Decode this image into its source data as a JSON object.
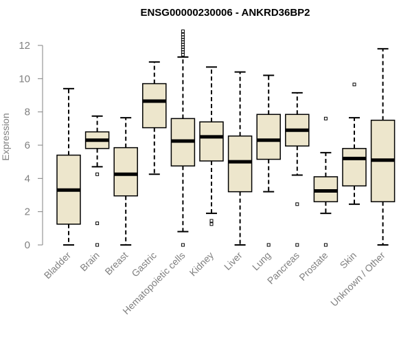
{
  "chart_data": {
    "type": "boxplot",
    "title": "ENSG00000230006 - ANKRD36BP2",
    "xlabel": "",
    "ylabel": "Expression",
    "ylim": [
      0,
      12
    ],
    "yticks": [
      0,
      2,
      4,
      6,
      8,
      10,
      12
    ],
    "grid": false,
    "colors": {
      "box_fill": "#ede6cc",
      "stroke": "#000000",
      "axis": "#808080"
    },
    "categories": [
      "Bladder",
      "Brain",
      "Breast",
      "Gastric",
      "Hematopoietic cells",
      "Kidney",
      "Liver",
      "Lung",
      "Pancreas",
      "Prostate",
      "Skin",
      "Unknown / Other"
    ],
    "boxes": [
      {
        "name": "Bladder",
        "whisker_low": 0.0,
        "q1": 1.25,
        "median": 3.3,
        "q3": 5.4,
        "whisker_high": 9.4,
        "outliers": []
      },
      {
        "name": "Brain",
        "whisker_low": 4.7,
        "q1": 5.8,
        "median": 6.3,
        "q3": 6.8,
        "whisker_high": 7.75,
        "outliers": [
          0.0,
          1.3,
          4.25
        ]
      },
      {
        "name": "Breast",
        "whisker_low": 0.0,
        "q1": 2.95,
        "median": 4.25,
        "q3": 5.85,
        "whisker_high": 7.65,
        "outliers": []
      },
      {
        "name": "Gastric",
        "whisker_low": 4.25,
        "q1": 7.05,
        "median": 8.65,
        "q3": 9.7,
        "whisker_high": 11.0,
        "outliers": []
      },
      {
        "name": "Hematopoietic cells",
        "whisker_low": 0.8,
        "q1": 4.75,
        "median": 6.25,
        "q3": 7.6,
        "whisker_high": 11.3,
        "outliers": [
          0.0,
          11.45,
          11.6,
          11.75,
          11.9,
          12.05,
          12.2,
          12.35,
          12.5,
          12.65,
          12.85
        ]
      },
      {
        "name": "Kidney",
        "whisker_low": 1.9,
        "q1": 5.05,
        "median": 6.5,
        "q3": 7.4,
        "whisker_high": 10.7,
        "outliers": [
          1.25,
          1.45
        ]
      },
      {
        "name": "Liver",
        "whisker_low": 0.0,
        "q1": 3.2,
        "median": 5.0,
        "q3": 6.55,
        "whisker_high": 10.4,
        "outliers": []
      },
      {
        "name": "Lung",
        "whisker_low": 3.2,
        "q1": 5.15,
        "median": 6.3,
        "q3": 7.85,
        "whisker_high": 10.2,
        "outliers": [
          0.0
        ]
      },
      {
        "name": "Pancreas",
        "whisker_low": 4.2,
        "q1": 5.95,
        "median": 6.9,
        "q3": 7.85,
        "whisker_high": 9.15,
        "outliers": [
          0.0,
          2.45
        ]
      },
      {
        "name": "Prostate",
        "whisker_low": 1.9,
        "q1": 2.6,
        "median": 3.25,
        "q3": 4.1,
        "whisker_high": 5.55,
        "outliers": [
          0.0,
          7.6
        ]
      },
      {
        "name": "Skin",
        "whisker_low": 2.45,
        "q1": 3.55,
        "median": 5.2,
        "q3": 5.8,
        "whisker_high": 7.65,
        "outliers": [
          9.65
        ]
      },
      {
        "name": "Unknown / Other",
        "whisker_low": 0.0,
        "q1": 2.6,
        "median": 5.1,
        "q3": 7.5,
        "whisker_high": 11.8,
        "outliers": []
      }
    ]
  }
}
